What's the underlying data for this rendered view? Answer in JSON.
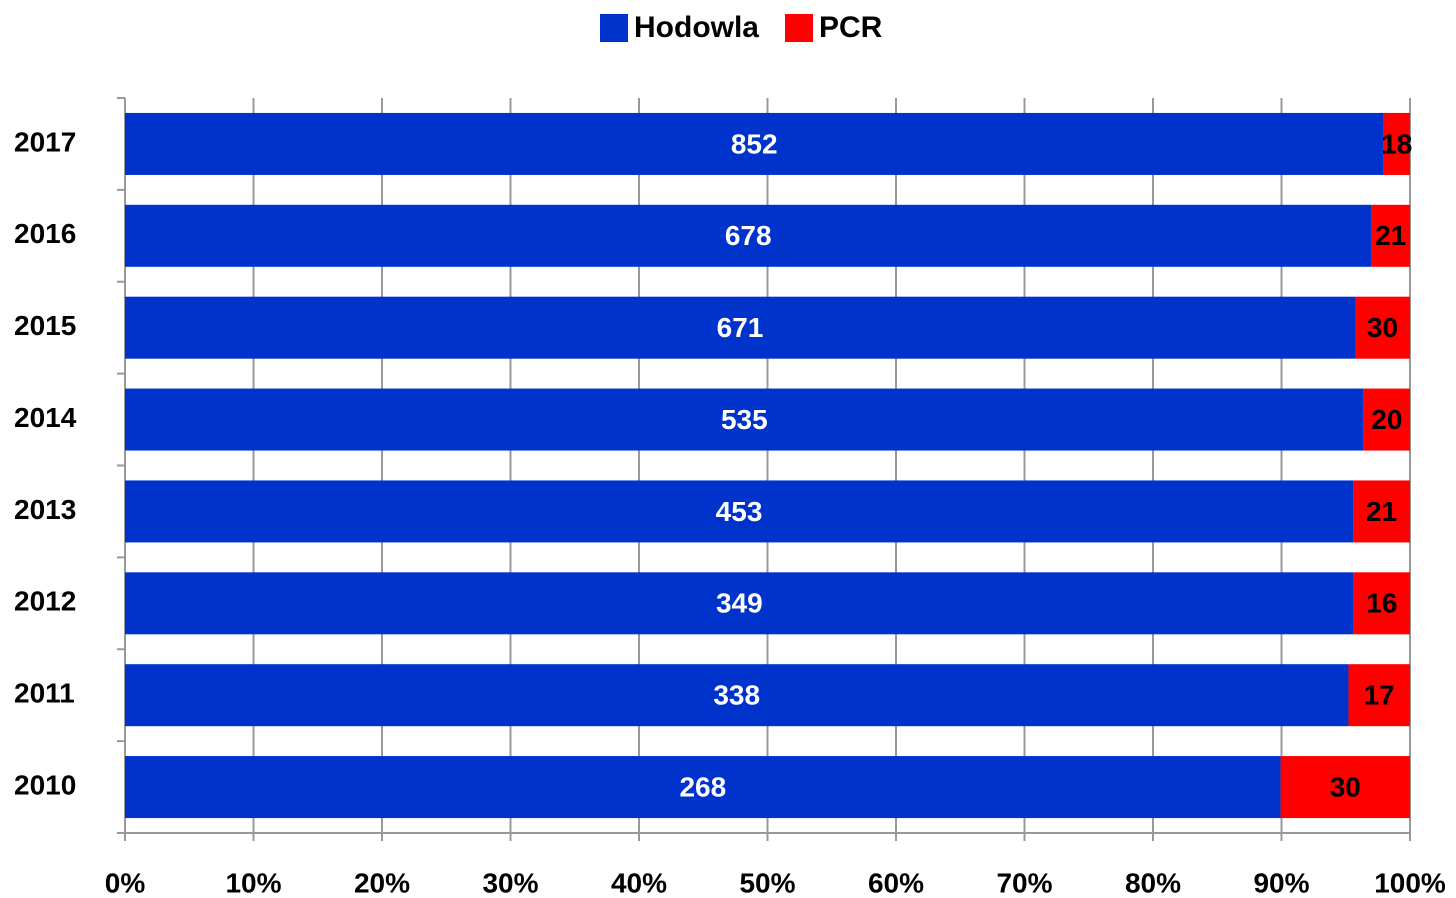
{
  "chart_data": {
    "type": "bar",
    "orientation": "horizontal",
    "stacking": "percent",
    "categories": [
      "2017",
      "2016",
      "2015",
      "2014",
      "2013",
      "2012",
      "2011",
      "2010"
    ],
    "series": [
      {
        "name": "Hodowla",
        "color": "#0033cc",
        "label_color": "#ffffff",
        "values": [
          852,
          678,
          671,
          535,
          453,
          349,
          338,
          268
        ]
      },
      {
        "name": "PCR",
        "color": "#ff0000",
        "label_color": "#000000",
        "values": [
          18,
          21,
          30,
          20,
          21,
          16,
          17,
          30
        ]
      }
    ],
    "xlim": [
      0,
      100
    ],
    "xticks": [
      {
        "value": 0,
        "label": "0%"
      },
      {
        "value": 10,
        "label": "10%"
      },
      {
        "value": 20,
        "label": "20%"
      },
      {
        "value": 30,
        "label": "30%"
      },
      {
        "value": 40,
        "label": "40%"
      },
      {
        "value": 50,
        "label": "50%"
      },
      {
        "value": 60,
        "label": "60%"
      },
      {
        "value": 70,
        "label": "70%"
      },
      {
        "value": 80,
        "label": "80%"
      },
      {
        "value": 90,
        "label": "90%"
      },
      {
        "value": 100,
        "label": "100%"
      }
    ],
    "grid": true,
    "legend": "top"
  }
}
